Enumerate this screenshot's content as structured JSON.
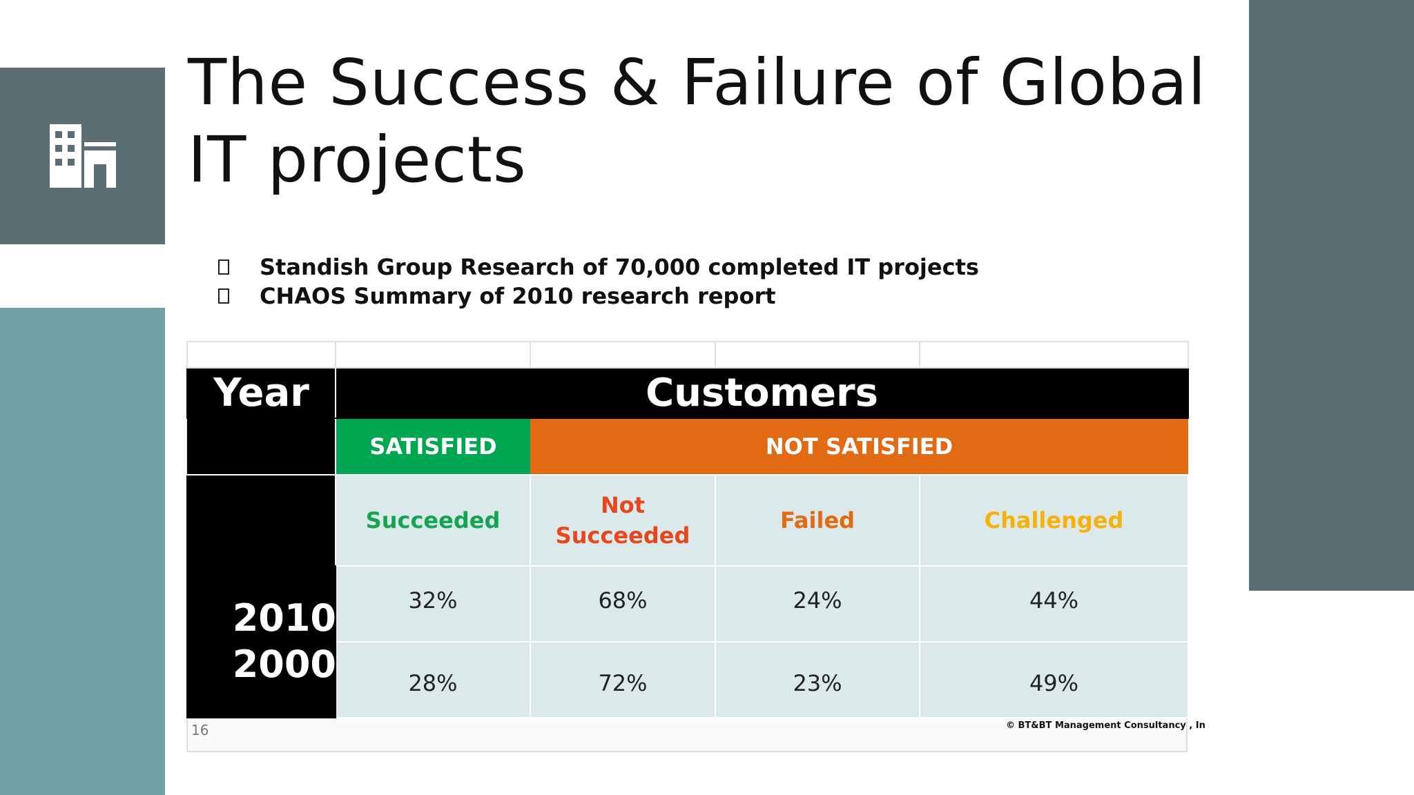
{
  "slide": {
    "title": "The Success & Failure of Global IT projects",
    "bullets": [
      "Standish Group Research of 70,000 completed IT projects",
      "CHAOS Summary of 2010 research report"
    ],
    "slide_number": "16",
    "copyright": "© BT&BT Management Consultancy , In"
  },
  "table": {
    "year_header": "Year",
    "customers_header": "Customers",
    "satisfied_label": "SATISFIED",
    "not_satisfied_label": "NOT SATISFIED",
    "columns": [
      {
        "lines": [
          "Succeeded"
        ],
        "color": "#15a552"
      },
      {
        "lines": [
          "Not",
          "Succeeded"
        ],
        "color": "#e8461c"
      },
      {
        "lines": [
          "Failed"
        ],
        "color": "#e26a12"
      },
      {
        "lines": [
          "Challenged"
        ],
        "color": "#f4b20a"
      }
    ],
    "rows": [
      {
        "year": "2010",
        "values": [
          "32%",
          "68%",
          "24%",
          "44%"
        ]
      },
      {
        "year": "2000",
        "values": [
          "28%",
          "72%",
          "23%",
          "49%"
        ]
      }
    ]
  },
  "colors": {
    "dark_band": "#5a6e73",
    "teal_band": "#72a1a5",
    "satisfied": "#00a650",
    "not_satisfied": "#e26a12",
    "cell_bg": "#dbe9ea"
  },
  "icons": [
    "building-icon",
    "bullet-square-icon"
  ]
}
